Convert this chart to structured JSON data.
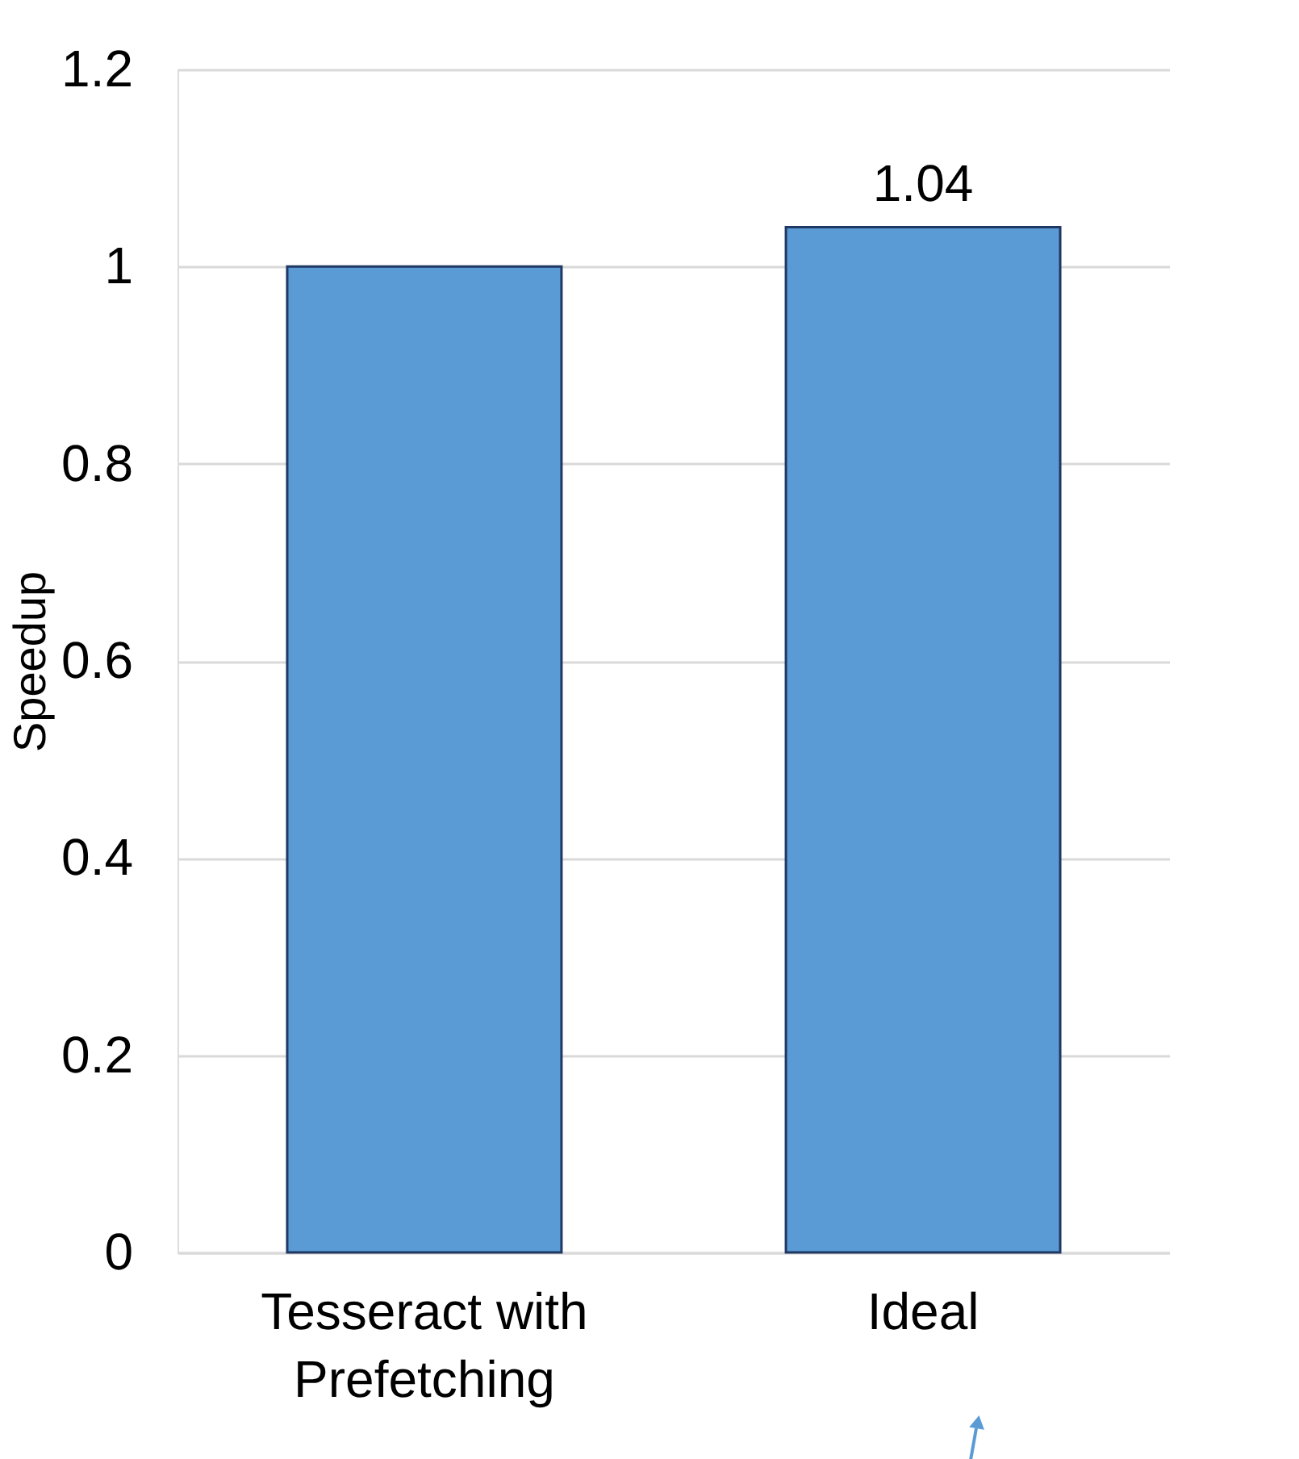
{
  "chart_data": {
    "type": "bar",
    "ylabel": "Speedup",
    "categories": [
      "Tesseract with Prefetching",
      "Ideal"
    ],
    "values": [
      1.0,
      1.04
    ],
    "value_labels": [
      null,
      "1.04"
    ],
    "color": "#5b9bd5",
    "ylim": [
      0,
      1.2
    ],
    "yticks": [
      0,
      0.2,
      0.4,
      0.6,
      0.8,
      1,
      1.2
    ],
    "grid": "y"
  }
}
